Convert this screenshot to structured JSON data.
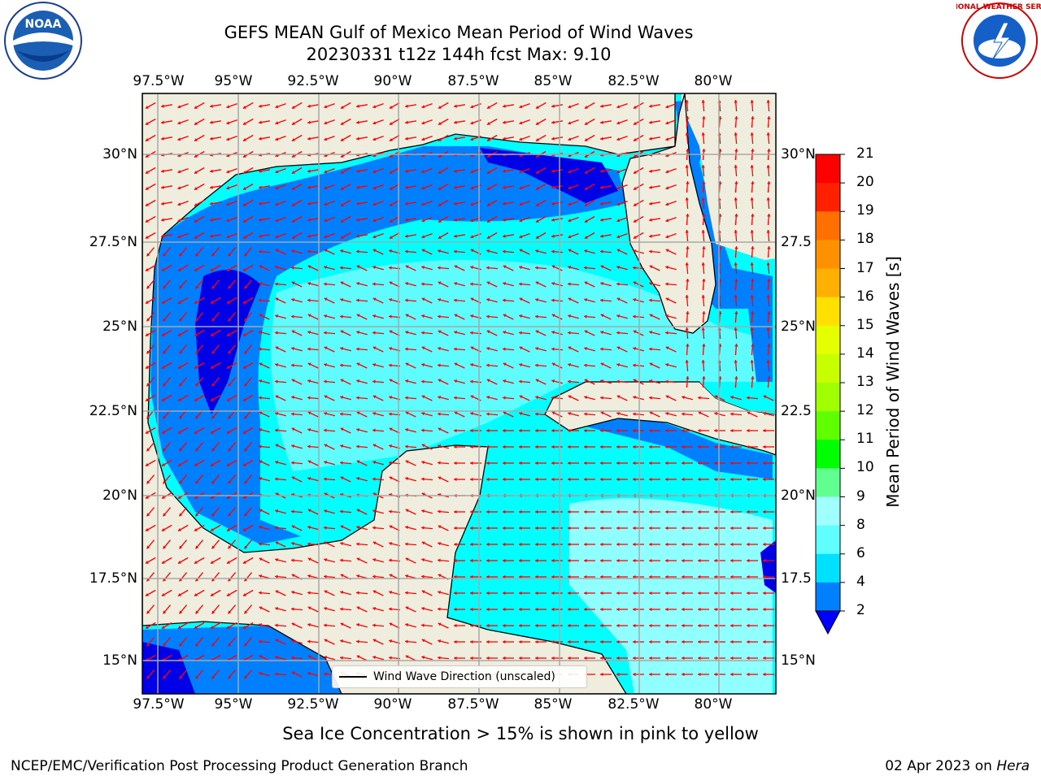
{
  "header": {
    "title_line1": "GEFS MEAN Gulf of Mexico Mean Period of Wind Waves",
    "title_line2": "20230331 t12z 144h fcst   Max: 9.10"
  },
  "logos": {
    "left": "NOAA",
    "right": "NATIONAL WEATHER SERVICE"
  },
  "map": {
    "lon_labels": [
      "97.5°W",
      "95°W",
      "92.5°W",
      "90°W",
      "87.5°W",
      "85°W",
      "82.5°W",
      "80°W"
    ],
    "lat_labels_left": [
      "30°N",
      "27.5°N",
      "25°N",
      "22.5°N",
      "20°N",
      "17.5°N",
      "15°N"
    ],
    "lat_labels_right": [
      "30°N",
      "27.5",
      "25°N",
      "22.5",
      "20°N",
      "17.5",
      "15°N"
    ],
    "legend_label": "Wind Wave Direction (unscaled)",
    "colors": {
      "land": "#efedde",
      "sea_dark": "#0000e6",
      "sea_mid": "#0080ff",
      "sea_light": "#00ffff",
      "sea_pale": "#80ffff",
      "arrow": "#ff0000"
    }
  },
  "colorbar": {
    "label": "Mean Period of Wind Waves [s]",
    "ticks": [
      "21",
      "20",
      "19",
      "18",
      "17",
      "16",
      "15",
      "14",
      "13",
      "12",
      "11",
      "10",
      "9",
      "8",
      "6",
      "4",
      "2"
    ],
    "colors": [
      "#ff0000",
      "#ff2000",
      "#ff4000",
      "#ff7000",
      "#ff9000",
      "#ffb000",
      "#ffe000",
      "#ffff00",
      "#e6ff00",
      "#c8ff00",
      "#a0ff00",
      "#60ff00",
      "#00e000",
      "#00ff00",
      "#60ff90",
      "#a0ffff",
      "#60ffff",
      "#00ffff",
      "#00e0ff",
      "#0080ff",
      "#0000ff"
    ]
  },
  "notes": {
    "sea_ice": "Sea Ice Concentration > 15% is shown in pink to yellow",
    "credit": "NCEP/EMC/Verification Post Processing Product Generation Branch",
    "date_prefix": "02 Apr 2023 on ",
    "machine": "Hera"
  }
}
